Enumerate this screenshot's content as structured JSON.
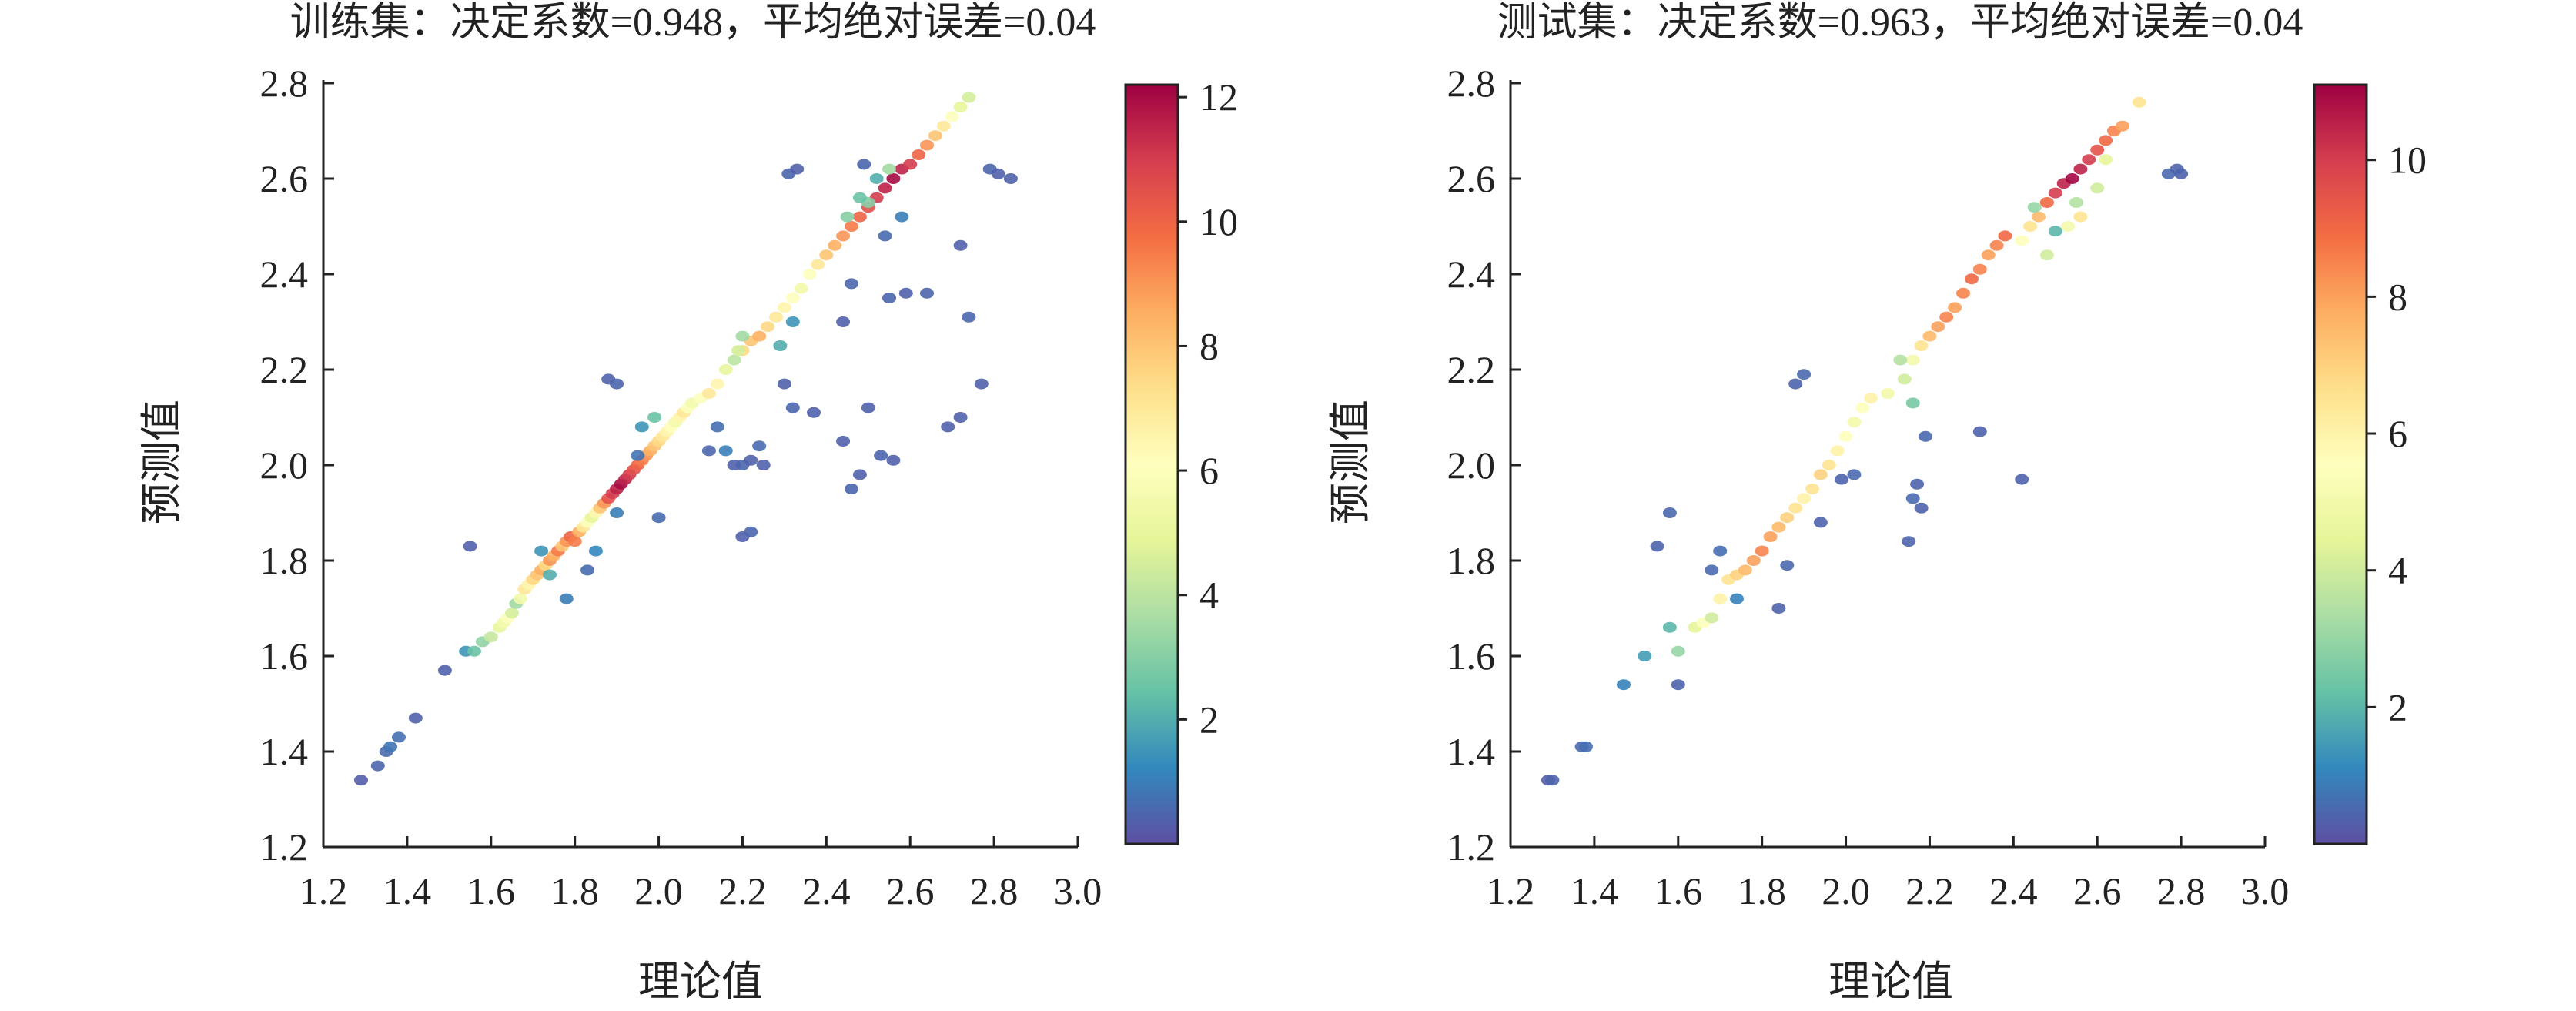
{
  "chart_data": [
    {
      "type": "scatter",
      "title": "训练集：决定系数=0.948，平均绝对误差=0.04",
      "xlabel": "理论值",
      "ylabel": "预测值",
      "xlim": [
        1.2,
        3.0
      ],
      "ylim": [
        1.2,
        2.8
      ],
      "xticks": [
        "1.2",
        "1.4",
        "1.6",
        "1.8",
        "2.0",
        "2.2",
        "2.4",
        "2.6",
        "2.8",
        "3.0"
      ],
      "yticks": [
        "1.2",
        "1.4",
        "1.6",
        "1.8",
        "2.0",
        "2.2",
        "2.4",
        "2.6",
        "2.8"
      ],
      "colorbar": {
        "range": [
          0,
          12.2
        ],
        "ticks": [
          "2",
          "4",
          "6",
          "8",
          "10",
          "12"
        ],
        "colormap": "Spectral_r"
      },
      "points": [
        [
          1.29,
          1.34,
          0.3
        ],
        [
          1.33,
          1.37,
          0.5
        ],
        [
          1.35,
          1.4,
          0.6
        ],
        [
          1.36,
          1.41,
          0.8
        ],
        [
          1.38,
          1.43,
          0.7
        ],
        [
          1.42,
          1.47,
          0.4
        ],
        [
          1.49,
          1.57,
          0.4
        ],
        [
          1.54,
          1.61,
          1.5
        ],
        [
          1.56,
          1.61,
          2.5
        ],
        [
          1.58,
          1.63,
          3.2
        ],
        [
          1.6,
          1.64,
          4.2
        ],
        [
          1.62,
          1.66,
          5.0
        ],
        [
          1.63,
          1.67,
          5.5
        ],
        [
          1.64,
          1.68,
          6.0
        ],
        [
          1.65,
          1.69,
          4.5
        ],
        [
          1.66,
          1.71,
          3.5
        ],
        [
          1.67,
          1.72,
          5.5
        ],
        [
          1.68,
          1.74,
          7.0
        ],
        [
          1.69,
          1.75,
          6.5
        ],
        [
          1.7,
          1.76,
          7.5
        ],
        [
          1.71,
          1.77,
          8.0
        ],
        [
          1.72,
          1.78,
          8.5
        ],
        [
          1.73,
          1.79,
          7.5
        ],
        [
          1.74,
          1.8,
          9.0
        ],
        [
          1.75,
          1.81,
          8.5
        ],
        [
          1.76,
          1.82,
          9.5
        ],
        [
          1.77,
          1.83,
          8.0
        ],
        [
          1.78,
          1.84,
          9.0
        ],
        [
          1.79,
          1.85,
          10.0
        ],
        [
          1.8,
          1.84,
          9.5
        ],
        [
          1.81,
          1.86,
          8.5
        ],
        [
          1.82,
          1.87,
          7.0
        ],
        [
          1.83,
          1.88,
          6.0
        ],
        [
          1.84,
          1.89,
          5.0
        ],
        [
          1.85,
          1.9,
          6.5
        ],
        [
          1.86,
          1.91,
          8.0
        ],
        [
          1.87,
          1.92,
          9.0
        ],
        [
          1.88,
          1.93,
          10.5
        ],
        [
          1.89,
          1.94,
          11.0
        ],
        [
          1.9,
          1.95,
          11.5
        ],
        [
          1.91,
          1.96,
          12.0
        ],
        [
          1.92,
          1.97,
          11.5
        ],
        [
          1.93,
          1.98,
          11.0
        ],
        [
          1.94,
          1.99,
          10.5
        ],
        [
          1.95,
          2.0,
          10.0
        ],
        [
          1.96,
          2.01,
          9.5
        ],
        [
          1.97,
          2.02,
          9.0
        ],
        [
          1.98,
          2.03,
          8.5
        ],
        [
          1.99,
          2.04,
          8.0
        ],
        [
          2.0,
          2.05,
          7.5
        ],
        [
          2.01,
          2.06,
          7.0
        ],
        [
          2.02,
          2.07,
          6.5
        ],
        [
          2.03,
          2.08,
          6.0
        ],
        [
          2.04,
          2.09,
          5.5
        ],
        [
          2.05,
          2.1,
          6.5
        ],
        [
          2.06,
          2.11,
          7.0
        ],
        [
          2.07,
          2.12,
          6.0
        ],
        [
          2.08,
          2.13,
          5.5
        ],
        [
          2.1,
          2.14,
          6.0
        ],
        [
          2.12,
          2.15,
          7.0
        ],
        [
          2.14,
          2.17,
          6.5
        ],
        [
          2.16,
          2.2,
          5.0
        ],
        [
          2.18,
          2.22,
          4.0
        ],
        [
          2.2,
          2.24,
          7.5
        ],
        [
          2.22,
          2.26,
          8.0
        ],
        [
          2.24,
          2.27,
          8.5
        ],
        [
          2.26,
          2.29,
          7.5
        ],
        [
          2.28,
          2.31,
          7.0
        ],
        [
          2.3,
          2.33,
          6.5
        ],
        [
          2.32,
          2.35,
          6.0
        ],
        [
          2.34,
          2.37,
          5.5
        ],
        [
          2.36,
          2.4,
          6.0
        ],
        [
          2.38,
          2.42,
          7.0
        ],
        [
          2.4,
          2.44,
          8.0
        ],
        [
          2.42,
          2.46,
          8.5
        ],
        [
          2.44,
          2.48,
          9.0
        ],
        [
          2.46,
          2.5,
          9.5
        ],
        [
          2.48,
          2.52,
          10.0
        ],
        [
          2.5,
          2.54,
          10.5
        ],
        [
          2.52,
          2.56,
          11.0
        ],
        [
          2.54,
          2.58,
          11.5
        ],
        [
          2.56,
          2.6,
          12.0
        ],
        [
          2.58,
          2.62,
          11.5
        ],
        [
          2.6,
          2.63,
          11.0
        ],
        [
          2.62,
          2.65,
          10.0
        ],
        [
          2.64,
          2.67,
          9.0
        ],
        [
          2.66,
          2.69,
          8.0
        ],
        [
          2.68,
          2.71,
          7.0
        ],
        [
          2.7,
          2.73,
          6.0
        ],
        [
          2.72,
          2.75,
          5.0
        ],
        [
          2.74,
          2.77,
          4.5
        ],
        [
          2.5,
          2.55,
          3.0
        ],
        [
          2.52,
          2.6,
          2.0
        ],
        [
          2.55,
          2.62,
          3.5
        ],
        [
          2.48,
          2.56,
          2.5
        ],
        [
          2.45,
          2.52,
          3.0
        ],
        [
          1.55,
          1.83,
          0.4
        ],
        [
          1.72,
          1.82,
          1.5
        ],
        [
          1.74,
          1.77,
          2.0
        ],
        [
          1.78,
          1.72,
          1.0
        ],
        [
          1.83,
          1.78,
          0.6
        ],
        [
          1.85,
          1.82,
          1.2
        ],
        [
          1.9,
          1.9,
          1.0
        ],
        [
          1.88,
          2.18,
          0.4
        ],
        [
          1.9,
          2.17,
          0.5
        ],
        [
          1.95,
          2.02,
          0.8
        ],
        [
          1.96,
          2.08,
          1.5
        ],
        [
          1.99,
          2.1,
          2.5
        ],
        [
          2.0,
          1.89,
          0.6
        ],
        [
          2.12,
          2.03,
          0.5
        ],
        [
          2.14,
          2.08,
          0.7
        ],
        [
          2.16,
          2.03,
          1.0
        ],
        [
          2.18,
          2.0,
          0.4
        ],
        [
          2.2,
          2.0,
          0.5
        ],
        [
          2.22,
          2.01,
          0.4
        ],
        [
          2.24,
          2.04,
          0.6
        ],
        [
          2.25,
          2.0,
          0.4
        ],
        [
          2.2,
          1.85,
          0.4
        ],
        [
          2.22,
          1.86,
          0.5
        ],
        [
          2.3,
          2.17,
          0.4
        ],
        [
          2.32,
          2.12,
          0.5
        ],
        [
          2.37,
          2.11,
          0.4
        ],
        [
          2.44,
          2.05,
          0.4
        ],
        [
          2.46,
          1.95,
          0.5
        ],
        [
          2.48,
          1.98,
          0.4
        ],
        [
          2.5,
          2.12,
          0.4
        ],
        [
          2.53,
          2.02,
          0.5
        ],
        [
          2.56,
          2.01,
          0.4
        ],
        [
          2.59,
          2.36,
          0.4
        ],
        [
          2.64,
          2.36,
          0.5
        ],
        [
          2.69,
          2.08,
          0.4
        ],
        [
          2.72,
          2.46,
          0.4
        ],
        [
          2.74,
          2.31,
          0.5
        ],
        [
          2.77,
          2.17,
          0.4
        ],
        [
          2.72,
          2.1,
          0.4
        ],
        [
          2.79,
          2.62,
          0.5
        ],
        [
          2.81,
          2.61,
          0.4
        ],
        [
          2.84,
          2.6,
          0.4
        ],
        [
          2.31,
          2.61,
          0.5
        ],
        [
          2.33,
          2.62,
          0.4
        ],
        [
          2.49,
          2.63,
          0.5
        ],
        [
          2.44,
          2.3,
          0.4
        ],
        [
          2.55,
          2.35,
          0.5
        ],
        [
          2.54,
          2.48,
          0.6
        ],
        [
          2.58,
          2.52,
          1.0
        ],
        [
          2.46,
          2.38,
          0.5
        ],
        [
          2.32,
          2.3,
          1.5
        ],
        [
          2.29,
          2.25,
          2.0
        ],
        [
          2.2,
          2.27,
          3.5
        ],
        [
          2.19,
          2.24,
          4.5
        ]
      ]
    },
    {
      "type": "scatter",
      "title": "测试集：决定系数=0.963，平均绝对误差=0.04",
      "xlabel": "理论值",
      "ylabel": "预测值",
      "xlim": [
        1.2,
        3.0
      ],
      "ylim": [
        1.2,
        2.8
      ],
      "xticks": [
        "1.2",
        "1.4",
        "1.6",
        "1.8",
        "2.0",
        "2.2",
        "2.4",
        "2.6",
        "2.8",
        "3.0"
      ],
      "yticks": [
        "1.2",
        "1.4",
        "1.6",
        "1.8",
        "2.0",
        "2.2",
        "2.4",
        "2.6",
        "2.8"
      ],
      "colorbar": {
        "range": [
          0,
          11.1
        ],
        "ticks": [
          "2",
          "4",
          "6",
          "8",
          "10"
        ],
        "colormap": "Spectral_r"
      },
      "points": [
        [
          1.29,
          1.34,
          0.3
        ],
        [
          1.3,
          1.34,
          0.4
        ],
        [
          1.37,
          1.41,
          0.5
        ],
        [
          1.38,
          1.41,
          0.6
        ],
        [
          1.47,
          1.54,
          1.0
        ],
        [
          1.52,
          1.6,
          1.5
        ],
        [
          1.58,
          1.66,
          2.0
        ],
        [
          1.6,
          1.61,
          3.0
        ],
        [
          1.64,
          1.66,
          4.5
        ],
        [
          1.66,
          1.67,
          5.5
        ],
        [
          1.68,
          1.68,
          4.0
        ],
        [
          1.7,
          1.72,
          6.0
        ],
        [
          1.72,
          1.76,
          6.5
        ],
        [
          1.74,
          1.77,
          7.0
        ],
        [
          1.76,
          1.78,
          7.5
        ],
        [
          1.78,
          1.8,
          8.0
        ],
        [
          1.8,
          1.82,
          8.5
        ],
        [
          1.82,
          1.85,
          8.0
        ],
        [
          1.84,
          1.87,
          7.5
        ],
        [
          1.86,
          1.89,
          7.0
        ],
        [
          1.88,
          1.91,
          6.5
        ],
        [
          1.9,
          1.93,
          6.0
        ],
        [
          1.92,
          1.95,
          6.5
        ],
        [
          1.94,
          1.98,
          7.0
        ],
        [
          1.96,
          2.0,
          6.5
        ],
        [
          1.98,
          2.03,
          6.0
        ],
        [
          2.0,
          2.06,
          5.5
        ],
        [
          2.02,
          2.09,
          5.0
        ],
        [
          2.04,
          2.12,
          5.5
        ],
        [
          2.06,
          2.14,
          6.0
        ],
        [
          2.1,
          2.15,
          5.0
        ],
        [
          2.14,
          2.18,
          4.0
        ],
        [
          2.16,
          2.22,
          5.0
        ],
        [
          2.18,
          2.25,
          6.5
        ],
        [
          2.2,
          2.27,
          7.5
        ],
        [
          2.22,
          2.29,
          8.0
        ],
        [
          2.24,
          2.31,
          8.5
        ],
        [
          2.26,
          2.33,
          8.0
        ],
        [
          2.28,
          2.36,
          8.5
        ],
        [
          2.3,
          2.39,
          9.0
        ],
        [
          2.32,
          2.41,
          8.5
        ],
        [
          2.34,
          2.44,
          8.0
        ],
        [
          2.36,
          2.46,
          8.5
        ],
        [
          2.38,
          2.48,
          9.0
        ],
        [
          2.42,
          2.47,
          5.5
        ],
        [
          2.44,
          2.5,
          6.5
        ],
        [
          2.46,
          2.52,
          7.5
        ],
        [
          2.48,
          2.55,
          9.0
        ],
        [
          2.5,
          2.57,
          10.0
        ],
        [
          2.52,
          2.59,
          10.5
        ],
        [
          2.54,
          2.6,
          11.0
        ],
        [
          2.56,
          2.62,
          10.5
        ],
        [
          2.58,
          2.64,
          10.0
        ],
        [
          2.6,
          2.66,
          9.5
        ],
        [
          2.62,
          2.68,
          9.0
        ],
        [
          2.64,
          2.7,
          8.5
        ],
        [
          2.66,
          2.71,
          8.0
        ],
        [
          2.7,
          2.76,
          6.5
        ],
        [
          2.45,
          2.54,
          3.0
        ],
        [
          2.5,
          2.49,
          2.0
        ],
        [
          2.55,
          2.55,
          3.5
        ],
        [
          2.6,
          2.58,
          4.0
        ],
        [
          2.62,
          2.64,
          4.5
        ],
        [
          2.48,
          2.44,
          4.0
        ],
        [
          2.53,
          2.5,
          5.0
        ],
        [
          2.56,
          2.52,
          6.5
        ],
        [
          1.55,
          1.83,
          0.4
        ],
        [
          1.58,
          1.9,
          0.5
        ],
        [
          1.6,
          1.54,
          0.4
        ],
        [
          1.68,
          1.78,
          0.5
        ],
        [
          1.7,
          1.82,
          0.6
        ],
        [
          1.74,
          1.72,
          1.0
        ],
        [
          1.84,
          1.7,
          0.4
        ],
        [
          1.86,
          1.79,
          0.5
        ],
        [
          1.88,
          2.17,
          0.4
        ],
        [
          1.9,
          2.19,
          0.5
        ],
        [
          1.94,
          1.88,
          0.4
        ],
        [
          1.99,
          1.97,
          0.4
        ],
        [
          2.02,
          1.98,
          0.5
        ],
        [
          2.15,
          1.84,
          0.4
        ],
        [
          2.16,
          1.93,
          0.5
        ],
        [
          2.17,
          1.96,
          0.4
        ],
        [
          2.18,
          1.91,
          0.4
        ],
        [
          2.19,
          2.06,
          0.5
        ],
        [
          2.32,
          2.07,
          0.4
        ],
        [
          2.42,
          1.97,
          0.4
        ],
        [
          2.77,
          2.61,
          0.5
        ],
        [
          2.79,
          2.62,
          0.4
        ],
        [
          2.8,
          2.61,
          0.4
        ],
        [
          2.16,
          2.13,
          2.5
        ],
        [
          2.13,
          2.22,
          3.5
        ]
      ]
    }
  ]
}
